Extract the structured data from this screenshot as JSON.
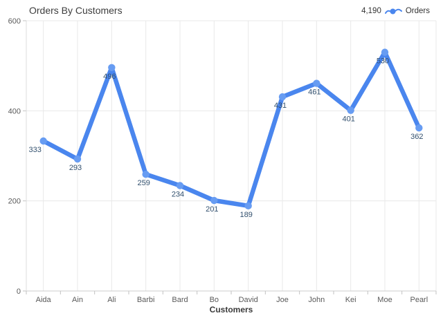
{
  "title": "Orders By Customers",
  "legend": {
    "value": "4,190",
    "label": "Orders",
    "icon": "line-series-icon"
  },
  "colors": {
    "line": "#4a86ee",
    "marker": "#679cf2",
    "grid": "#e8e8e8",
    "axis_y": "#dcdcdc",
    "axis_x": "#cccccc",
    "tick": "#c2c2c2",
    "axis_text": "#595959",
    "axis_title_text": "#3a3a3a",
    "data_label": "#32506e"
  },
  "chart_data": {
    "type": "line",
    "title": "Orders By Customers",
    "categories": [
      "Aida",
      "Ain",
      "Ali",
      "Barbi",
      "Bard",
      "Bo",
      "David",
      "Joe",
      "John",
      "Kei",
      "Moe",
      "Pearl"
    ],
    "series": [
      {
        "name": "Orders",
        "values": [
          333,
          293,
          496,
          259,
          234,
          201,
          189,
          431,
          461,
          401,
          530,
          362
        ]
      }
    ],
    "series_total": "4,190",
    "xlabel": "Customers",
    "ylabel": "",
    "ylim": [
      0,
      600
    ],
    "yticks": [
      0,
      200,
      400,
      600
    ],
    "grid": true,
    "legend_position": "top-right",
    "data_labels": true
  }
}
